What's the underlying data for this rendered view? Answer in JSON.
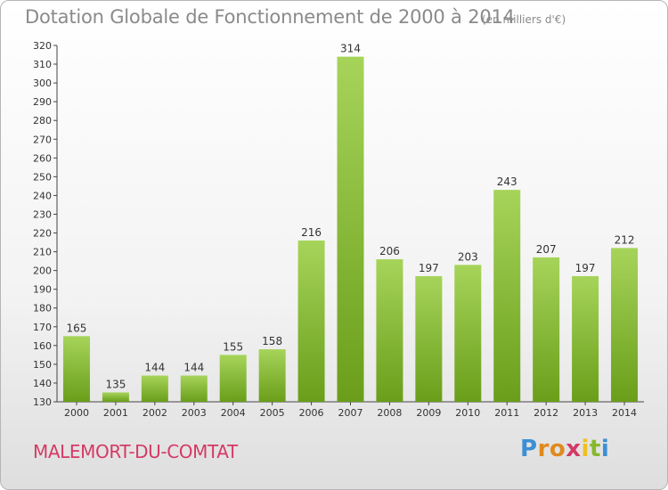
{
  "header": {
    "title": "Dotation Globale de Fonctionnement de 2000 à 2014",
    "subtitle": "(en milliers d'€)"
  },
  "footer": {
    "commune": "MALEMORT-DU-COMTAT",
    "logo": "Proxiti"
  },
  "colors": {
    "bar_top": "#a6d45a",
    "bar_bottom": "#6a9e1a",
    "commune_text": "#d43a66",
    "logo_letters": [
      "#3c8fd4",
      "#e08a1e",
      "#e08a1e",
      "#d43a66",
      "#f0c020",
      "#86b82c",
      "#3c8fd4"
    ]
  },
  "chart_data": {
    "type": "bar",
    "title": "Dotation Globale de Fonctionnement de 2000 à 2014",
    "subtitle": "(en milliers d'€)",
    "categories": [
      "2000",
      "2001",
      "2002",
      "2003",
      "2004",
      "2005",
      "2006",
      "2007",
      "2008",
      "2009",
      "2010",
      "2011",
      "2012",
      "2013",
      "2014"
    ],
    "values": [
      165,
      135,
      144,
      144,
      155,
      158,
      216,
      314,
      206,
      197,
      203,
      243,
      207,
      197,
      212
    ],
    "ylim": [
      130,
      320
    ],
    "yticks": [
      130,
      140,
      150,
      160,
      170,
      180,
      190,
      200,
      210,
      220,
      230,
      240,
      250,
      260,
      270,
      280,
      290,
      300,
      310,
      320
    ],
    "grid": false,
    "legend": "none"
  }
}
